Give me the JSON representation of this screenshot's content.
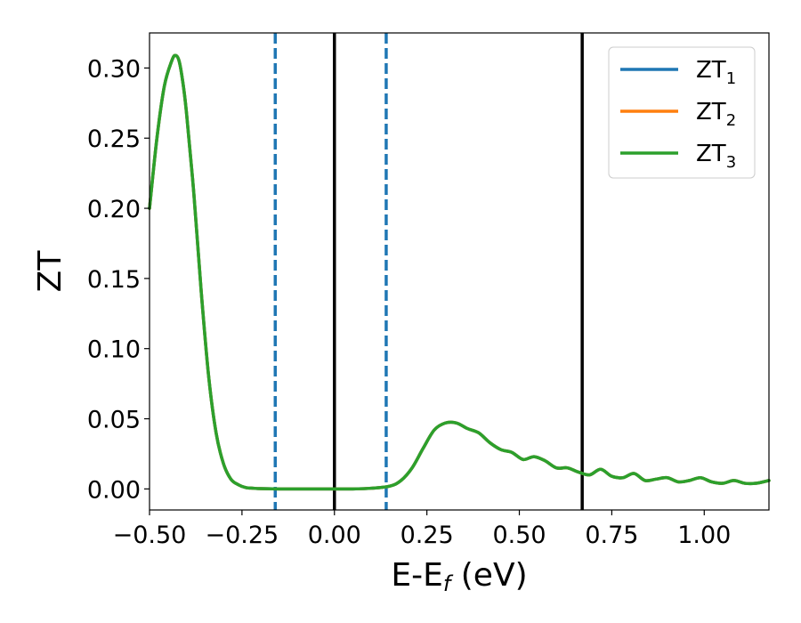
{
  "chart_data": {
    "type": "line",
    "title": "",
    "xlabel": {
      "main": "E-E",
      "sub": "f",
      "suffix": " (eV)"
    },
    "ylabel": "ZT",
    "xlim": [
      -0.5,
      1.175
    ],
    "ylim": [
      -0.015,
      0.325
    ],
    "xticks": [
      -0.5,
      -0.25,
      0.0,
      0.25,
      0.5,
      0.75,
      1.0
    ],
    "xtick_labels": [
      "−0.50",
      "−0.25",
      "0.00",
      "0.25",
      "0.50",
      "0.75",
      "1.00"
    ],
    "yticks": [
      0.0,
      0.05,
      0.1,
      0.15,
      0.2,
      0.25,
      0.3
    ],
    "ytick_labels": [
      "0.00",
      "0.05",
      "0.10",
      "0.15",
      "0.20",
      "0.25",
      "0.30"
    ],
    "grid": false,
    "legend_position": "top-right",
    "series": [
      {
        "name": "ZT",
        "sub": "1",
        "color": "#1f77b4"
      },
      {
        "name": "ZT",
        "sub": "2",
        "color": "#ff7f0e"
      },
      {
        "name": "ZT",
        "sub": "3",
        "color": "#2ca02c"
      }
    ],
    "x": [
      -0.5,
      -0.48,
      -0.46,
      -0.44,
      -0.43,
      -0.42,
      -0.41,
      -0.4,
      -0.38,
      -0.36,
      -0.34,
      -0.32,
      -0.3,
      -0.28,
      -0.26,
      -0.24,
      -0.22,
      -0.2,
      -0.15,
      -0.1,
      -0.05,
      0.0,
      0.05,
      0.1,
      0.15,
      0.18,
      0.21,
      0.24,
      0.27,
      0.3,
      0.33,
      0.36,
      0.39,
      0.42,
      0.45,
      0.48,
      0.51,
      0.54,
      0.57,
      0.6,
      0.63,
      0.66,
      0.69,
      0.72,
      0.75,
      0.78,
      0.81,
      0.84,
      0.87,
      0.9,
      0.93,
      0.96,
      0.99,
      1.02,
      1.05,
      1.08,
      1.11,
      1.14,
      1.175
    ],
    "y": [
      0.2,
      0.25,
      0.287,
      0.305,
      0.309,
      0.305,
      0.29,
      0.268,
      0.21,
      0.14,
      0.08,
      0.04,
      0.018,
      0.007,
      0.003,
      0.001,
      0.0005,
      0.0002,
      0.0,
      0.0,
      0.0,
      0.0,
      0.0,
      0.0005,
      0.002,
      0.006,
      0.015,
      0.029,
      0.042,
      0.047,
      0.047,
      0.043,
      0.04,
      0.033,
      0.028,
      0.026,
      0.021,
      0.023,
      0.02,
      0.015,
      0.015,
      0.012,
      0.01,
      0.014,
      0.009,
      0.008,
      0.011,
      0.006,
      0.007,
      0.008,
      0.005,
      0.006,
      0.008,
      0.005,
      0.004,
      0.006,
      0.004,
      0.004,
      0.006
    ],
    "vlines": [
      {
        "x": -0.16,
        "color": "#1f77b4",
        "style": "dashed"
      },
      {
        "x": 0.14,
        "color": "#1f77b4",
        "style": "dashed"
      },
      {
        "x": 0.0,
        "color": "#000000",
        "style": "solid"
      },
      {
        "x": 0.67,
        "color": "#000000",
        "style": "solid"
      }
    ]
  }
}
